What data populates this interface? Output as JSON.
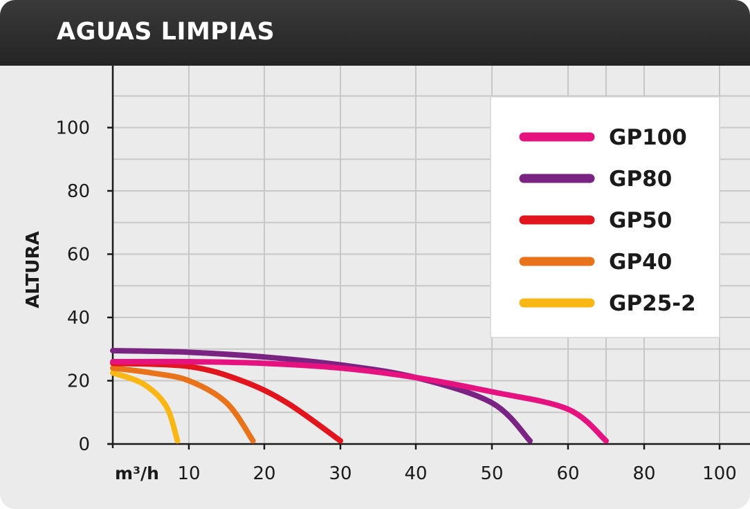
{
  "chart_data": {
    "type": "line",
    "title": "AGUAS LIMPIAS",
    "ylabel": "ALTURA",
    "xlabel": "m³/h",
    "xlim": [
      0,
      100
    ],
    "ylim": [
      0,
      100
    ],
    "x_ticks": [
      "10",
      "20",
      "30",
      "40",
      "50",
      "60",
      "80",
      "100"
    ],
    "y_ticks": [
      "0",
      "20",
      "40",
      "60",
      "80",
      "100"
    ],
    "grid": true,
    "legend_position": "top-right",
    "series": [
      {
        "name": "GP100",
        "color": "#e6127f",
        "points": [
          [
            0,
            26
          ],
          [
            10,
            26
          ],
          [
            20,
            25.5
          ],
          [
            30,
            24
          ],
          [
            40,
            21
          ],
          [
            50,
            16.5
          ],
          [
            60,
            11
          ],
          [
            70,
            1
          ]
        ]
      },
      {
        "name": "GP80",
        "color": "#7a2382",
        "points": [
          [
            0,
            29.5
          ],
          [
            10,
            29
          ],
          [
            20,
            27.5
          ],
          [
            30,
            25
          ],
          [
            40,
            21
          ],
          [
            50,
            13
          ],
          [
            55,
            1
          ]
        ]
      },
      {
        "name": "GP50",
        "color": "#e2141d",
        "points": [
          [
            0,
            25.5
          ],
          [
            10,
            24.5
          ],
          [
            17,
            20
          ],
          [
            23,
            13
          ],
          [
            30,
            1
          ]
        ]
      },
      {
        "name": "GP40",
        "color": "#e8731a",
        "points": [
          [
            0,
            24
          ],
          [
            5,
            22.5
          ],
          [
            10,
            20
          ],
          [
            15,
            13
          ],
          [
            18.5,
            1
          ]
        ]
      },
      {
        "name": "GP25-2",
        "color": "#f8b714",
        "points": [
          [
            0,
            22.5
          ],
          [
            4,
            19
          ],
          [
            7,
            12
          ],
          [
            8.5,
            1
          ]
        ]
      }
    ]
  }
}
